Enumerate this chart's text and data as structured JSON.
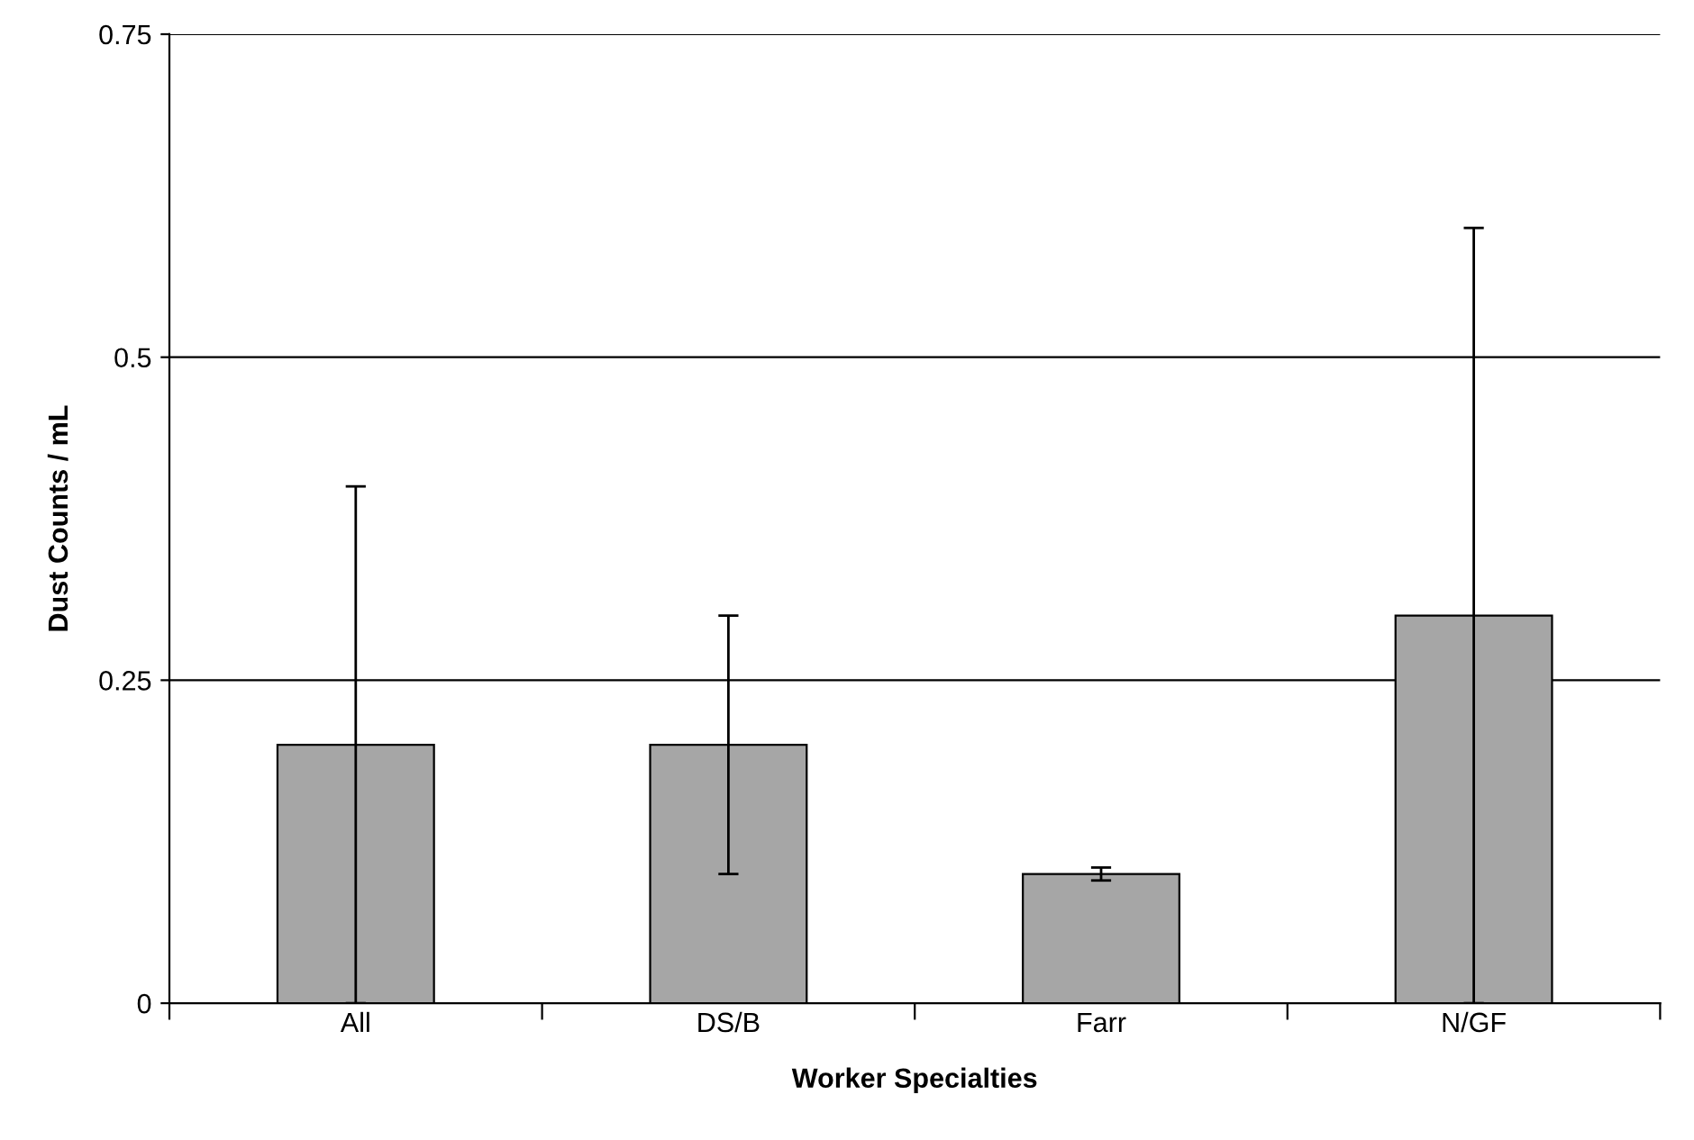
{
  "chart_data": {
    "type": "bar",
    "xlabel": "Worker Specialties",
    "ylabel": "Dust Counts / mL",
    "categories": [
      "All",
      "DS/B",
      "Farr",
      "N/GF"
    ],
    "values": [
      0.2,
      0.2,
      0.1,
      0.3
    ],
    "errors": [
      [
        0,
        0.4
      ],
      [
        0.1,
        0.3
      ],
      [
        0.095,
        0.105
      ],
      [
        0,
        0.6
      ]
    ],
    "color": "#a6a6a6",
    "ylim": [
      0,
      0.75
    ],
    "yticks": [
      0,
      0.25,
      0.5,
      0.75
    ],
    "grid": "y"
  }
}
